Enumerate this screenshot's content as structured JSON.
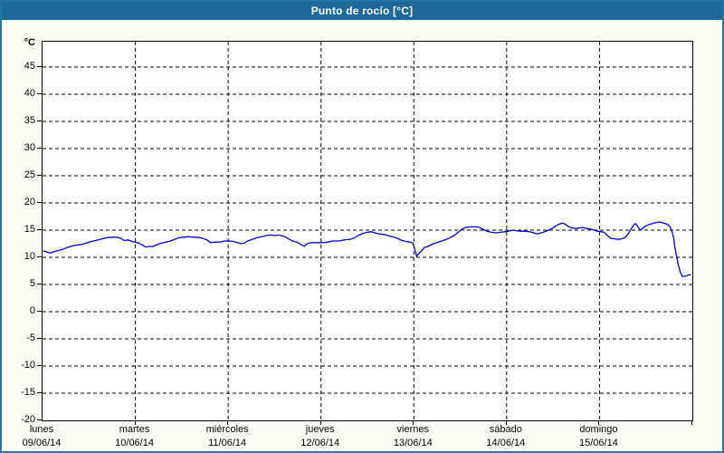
{
  "header": {
    "title": "Punto de rocío [°C]"
  },
  "colors": {
    "titlebar_bg": "#1e689c",
    "frame_border": "#2474a8",
    "panel_bg": "#fdfdf6",
    "plot_bg": "#ffffff",
    "grid": "#000000",
    "series": "#0000c8",
    "title_text": "#ffffff",
    "axis_text": "#000000"
  },
  "chart_data": {
    "type": "line",
    "title": "Punto de rocío [°C]",
    "y_unit": "°C",
    "ylabel": "",
    "xlabel": "",
    "ylim": [
      -20,
      49.67
    ],
    "y_ticks": [
      45,
      40,
      35,
      30,
      25,
      20,
      15,
      10,
      5,
      0,
      -5,
      -10,
      -15,
      -20
    ],
    "grid": "dashed",
    "legend_position": "none",
    "x_days": [
      {
        "name": "lunes",
        "date": "09/06/14"
      },
      {
        "name": "martes",
        "date": "10/06/14"
      },
      {
        "name": "miércoles",
        "date": "11/06/14"
      },
      {
        "name": "jueves",
        "date": "12/06/14"
      },
      {
        "name": "viernes",
        "date": "13/06/14"
      },
      {
        "name": "sábado",
        "date": "14/06/14"
      },
      {
        "name": "domingo",
        "date": "15/06/14"
      }
    ],
    "series": [
      {
        "name": "Punto de rocío",
        "color": "#0000c8",
        "x_unit": "days_from_start",
        "points": [
          [
            0.01,
            11.2
          ],
          [
            0.04,
            11.0
          ],
          [
            0.08,
            10.8
          ],
          [
            0.12,
            11.0
          ],
          [
            0.16,
            11.2
          ],
          [
            0.21,
            11.4
          ],
          [
            0.25,
            11.7
          ],
          [
            0.3,
            12.0
          ],
          [
            0.35,
            12.2
          ],
          [
            0.4,
            12.3
          ],
          [
            0.45,
            12.5
          ],
          [
            0.5,
            12.8
          ],
          [
            0.55,
            13.0
          ],
          [
            0.6,
            13.2
          ],
          [
            0.64,
            13.4
          ],
          [
            0.69,
            13.6
          ],
          [
            0.74,
            13.7
          ],
          [
            0.8,
            13.7
          ],
          [
            0.84,
            13.5
          ],
          [
            0.88,
            13.1
          ],
          [
            0.92,
            13.2
          ],
          [
            0.97,
            12.9
          ],
          [
            1.0,
            12.8
          ],
          [
            1.04,
            12.6
          ],
          [
            1.08,
            12.2
          ],
          [
            1.11,
            11.9
          ],
          [
            1.15,
            12.0
          ],
          [
            1.19,
            12.0
          ],
          [
            1.23,
            12.3
          ],
          [
            1.28,
            12.6
          ],
          [
            1.33,
            12.8
          ],
          [
            1.38,
            13.0
          ],
          [
            1.42,
            13.3
          ],
          [
            1.47,
            13.6
          ],
          [
            1.52,
            13.7
          ],
          [
            1.57,
            13.8
          ],
          [
            1.62,
            13.7
          ],
          [
            1.67,
            13.7
          ],
          [
            1.72,
            13.5
          ],
          [
            1.77,
            13.2
          ],
          [
            1.81,
            12.7
          ],
          [
            1.86,
            12.8
          ],
          [
            1.91,
            12.8
          ],
          [
            1.96,
            13.0
          ],
          [
            2.01,
            13.0
          ],
          [
            2.06,
            12.9
          ],
          [
            2.1,
            12.7
          ],
          [
            2.14,
            12.5
          ],
          [
            2.17,
            12.6
          ],
          [
            2.21,
            13.0
          ],
          [
            2.26,
            13.3
          ],
          [
            2.31,
            13.6
          ],
          [
            2.36,
            13.8
          ],
          [
            2.41,
            14.0
          ],
          [
            2.46,
            14.1
          ],
          [
            2.5,
            14.0
          ],
          [
            2.54,
            14.1
          ],
          [
            2.57,
            14.0
          ],
          [
            2.61,
            13.8
          ],
          [
            2.65,
            13.4
          ],
          [
            2.69,
            13.0
          ],
          [
            2.74,
            12.8
          ],
          [
            2.79,
            12.3
          ],
          [
            2.82,
            12.0
          ],
          [
            2.85,
            12.5
          ],
          [
            2.9,
            12.7
          ],
          [
            2.95,
            12.7
          ],
          [
            3.01,
            12.7
          ],
          [
            3.07,
            12.8
          ],
          [
            3.13,
            13.0
          ],
          [
            3.19,
            13.0
          ],
          [
            3.25,
            13.2
          ],
          [
            3.31,
            13.3
          ],
          [
            3.35,
            13.5
          ],
          [
            3.4,
            14.0
          ],
          [
            3.45,
            14.4
          ],
          [
            3.5,
            14.6
          ],
          [
            3.54,
            14.7
          ],
          [
            3.58,
            14.5
          ],
          [
            3.63,
            14.3
          ],
          [
            3.68,
            14.2
          ],
          [
            3.72,
            14.0
          ],
          [
            3.77,
            13.8
          ],
          [
            3.82,
            13.5
          ],
          [
            3.87,
            13.1
          ],
          [
            3.92,
            12.9
          ],
          [
            3.96,
            12.8
          ],
          [
            3.99,
            12.6
          ],
          [
            4.01,
            11.5
          ],
          [
            4.03,
            10.2
          ],
          [
            4.06,
            10.8
          ],
          [
            4.09,
            11.3
          ],
          [
            4.11,
            11.8
          ],
          [
            4.15,
            12.0
          ],
          [
            4.2,
            12.4
          ],
          [
            4.25,
            12.7
          ],
          [
            4.3,
            13.0
          ],
          [
            4.35,
            13.3
          ],
          [
            4.4,
            13.7
          ],
          [
            4.45,
            14.2
          ],
          [
            4.49,
            14.8
          ],
          [
            4.52,
            15.2
          ],
          [
            4.56,
            15.5
          ],
          [
            4.61,
            15.6
          ],
          [
            4.66,
            15.6
          ],
          [
            4.71,
            15.5
          ],
          [
            4.75,
            15.1
          ],
          [
            4.79,
            14.8
          ],
          [
            4.84,
            14.6
          ],
          [
            4.89,
            14.5
          ],
          [
            4.93,
            14.6
          ],
          [
            4.98,
            14.7
          ],
          [
            5.02,
            14.8
          ],
          [
            5.06,
            15.0
          ],
          [
            5.1,
            14.9
          ],
          [
            5.15,
            14.8
          ],
          [
            5.2,
            14.8
          ],
          [
            5.25,
            14.7
          ],
          [
            5.29,
            14.5
          ],
          [
            5.33,
            14.3
          ],
          [
            5.37,
            14.5
          ],
          [
            5.41,
            14.7
          ],
          [
            5.45,
            15.0
          ],
          [
            5.49,
            15.3
          ],
          [
            5.53,
            15.8
          ],
          [
            5.57,
            16.1
          ],
          [
            5.6,
            16.3
          ],
          [
            5.63,
            16.1
          ],
          [
            5.66,
            15.7
          ],
          [
            5.7,
            15.4
          ],
          [
            5.74,
            15.3
          ],
          [
            5.78,
            15.4
          ],
          [
            5.82,
            15.5
          ],
          [
            5.86,
            15.3
          ],
          [
            5.9,
            15.2
          ],
          [
            5.94,
            15.0
          ],
          [
            5.98,
            14.8
          ],
          [
            6.02,
            14.7
          ],
          [
            6.05,
            14.6
          ],
          [
            6.08,
            14.1
          ],
          [
            6.12,
            13.5
          ],
          [
            6.16,
            13.4
          ],
          [
            6.2,
            13.3
          ],
          [
            6.24,
            13.4
          ],
          [
            6.28,
            13.7
          ],
          [
            6.31,
            14.3
          ],
          [
            6.34,
            15.2
          ],
          [
            6.37,
            16.0
          ],
          [
            6.39,
            16.2
          ],
          [
            6.41,
            15.7
          ],
          [
            6.43,
            15.2
          ],
          [
            6.44,
            15.0
          ],
          [
            6.47,
            15.4
          ],
          [
            6.5,
            15.8
          ],
          [
            6.53,
            16.0
          ],
          [
            6.57,
            16.2
          ],
          [
            6.61,
            16.4
          ],
          [
            6.65,
            16.5
          ],
          [
            6.69,
            16.3
          ],
          [
            6.73,
            16.1
          ],
          [
            6.76,
            15.6
          ],
          [
            6.78,
            14.8
          ],
          [
            6.8,
            13.5
          ],
          [
            6.81,
            12.0
          ],
          [
            6.83,
            10.2
          ],
          [
            6.85,
            8.5
          ],
          [
            6.87,
            7.3
          ],
          [
            6.89,
            6.5
          ],
          [
            6.92,
            6.5
          ],
          [
            6.95,
            6.7
          ],
          [
            6.98,
            6.8
          ]
        ]
      }
    ]
  }
}
